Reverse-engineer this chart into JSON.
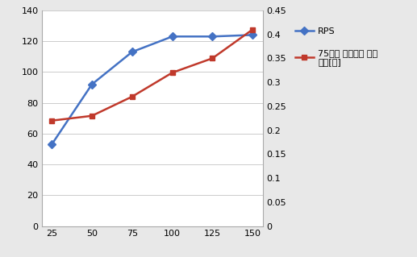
{
  "x": [
    25,
    50,
    75,
    100,
    125,
    150
  ],
  "rps": [
    53,
    92,
    113,
    123,
    123,
    124
  ],
  "latency": [
    0.22,
    0.23,
    0.27,
    0.32,
    0.35,
    0.41
  ],
  "rps_color": "#4472C4",
  "latency_color": "#C0392B",
  "rps_label": "RPS",
  "latency_label": "75번째 백분위수 대기\n시간[초]",
  "left_ylim": [
    0,
    140
  ],
  "right_ylim": [
    0,
    0.45
  ],
  "left_yticks": [
    0,
    20,
    40,
    60,
    80,
    100,
    120,
    140
  ],
  "right_yticks": [
    0,
    0.05,
    0.1,
    0.15,
    0.2,
    0.25,
    0.3,
    0.35,
    0.4,
    0.45
  ],
  "right_yticklabels": [
    "0",
    "0.05",
    "0.1",
    "0.15",
    "0.2",
    "0.25",
    "0.3",
    "0.35",
    "0.4",
    "0.45"
  ],
  "xticks": [
    25,
    50,
    75,
    100,
    125,
    150
  ],
  "bg_color": "#E8E8E8",
  "plot_bg_color": "#FFFFFF",
  "marker_size": 5,
  "line_width": 1.8,
  "legend_fontsize": 8,
  "tick_fontsize": 8
}
